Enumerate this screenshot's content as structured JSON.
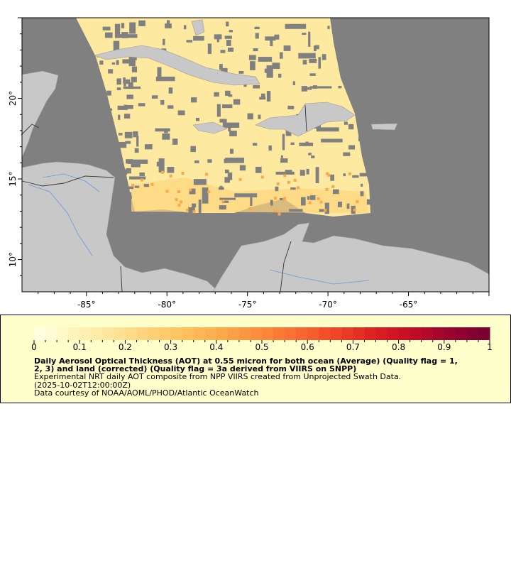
{
  "map": {
    "lon_range": [
      -89,
      -60
    ],
    "lat_range": [
      8,
      25
    ],
    "x_ticks": [
      "-85°",
      "-80°",
      "-75°",
      "-70°",
      "-65°"
    ],
    "x_tick_values": [
      -85,
      -80,
      -75,
      -70,
      -65
    ],
    "y_ticks": [
      "20°",
      "15°",
      "10°"
    ],
    "y_tick_values": [
      20,
      15,
      10
    ],
    "colors": {
      "ocean_nodata": "#808080",
      "land": "#c8c8c8",
      "rivers": "#6699dd",
      "borders": "#333333",
      "low_aot": "#fff0a8",
      "mid_aot": "#fdd37a"
    }
  },
  "legend": {
    "colorbar_ticks": [
      "0",
      "0.1",
      "0.2",
      "0.3",
      "0.4",
      "0.5",
      "0.6",
      "0.7",
      "0.8",
      "0.9",
      "1"
    ],
    "colorbar_range": [
      0,
      1
    ],
    "colorbar_colors": [
      "#ffffe0",
      "#fff3b8",
      "#fee49a",
      "#fed176",
      "#febf5a",
      "#fda648",
      "#fc8a3b",
      "#f96a30",
      "#f04527",
      "#dd2122",
      "#c40c24",
      "#9e0330",
      "#7a0030"
    ],
    "title_line1": "Daily Aerosol Optical Thickness (AOT) at 0.55 micron for both ocean (Average) (Quality flag = 1,",
    "title_line2": "2, 3) and land (corrected) (Quality flag = 3a derived from VIIRS on SNPP)",
    "summary": "Experimental NRT daily AOT composite from NPP VIIRS created from Unprojected Swath Data.",
    "time": "(2025-10-02T12:00:00Z)",
    "credit": "Data courtesy of NOAA/AOML/PHOD/Atlantic OceanWatch"
  }
}
